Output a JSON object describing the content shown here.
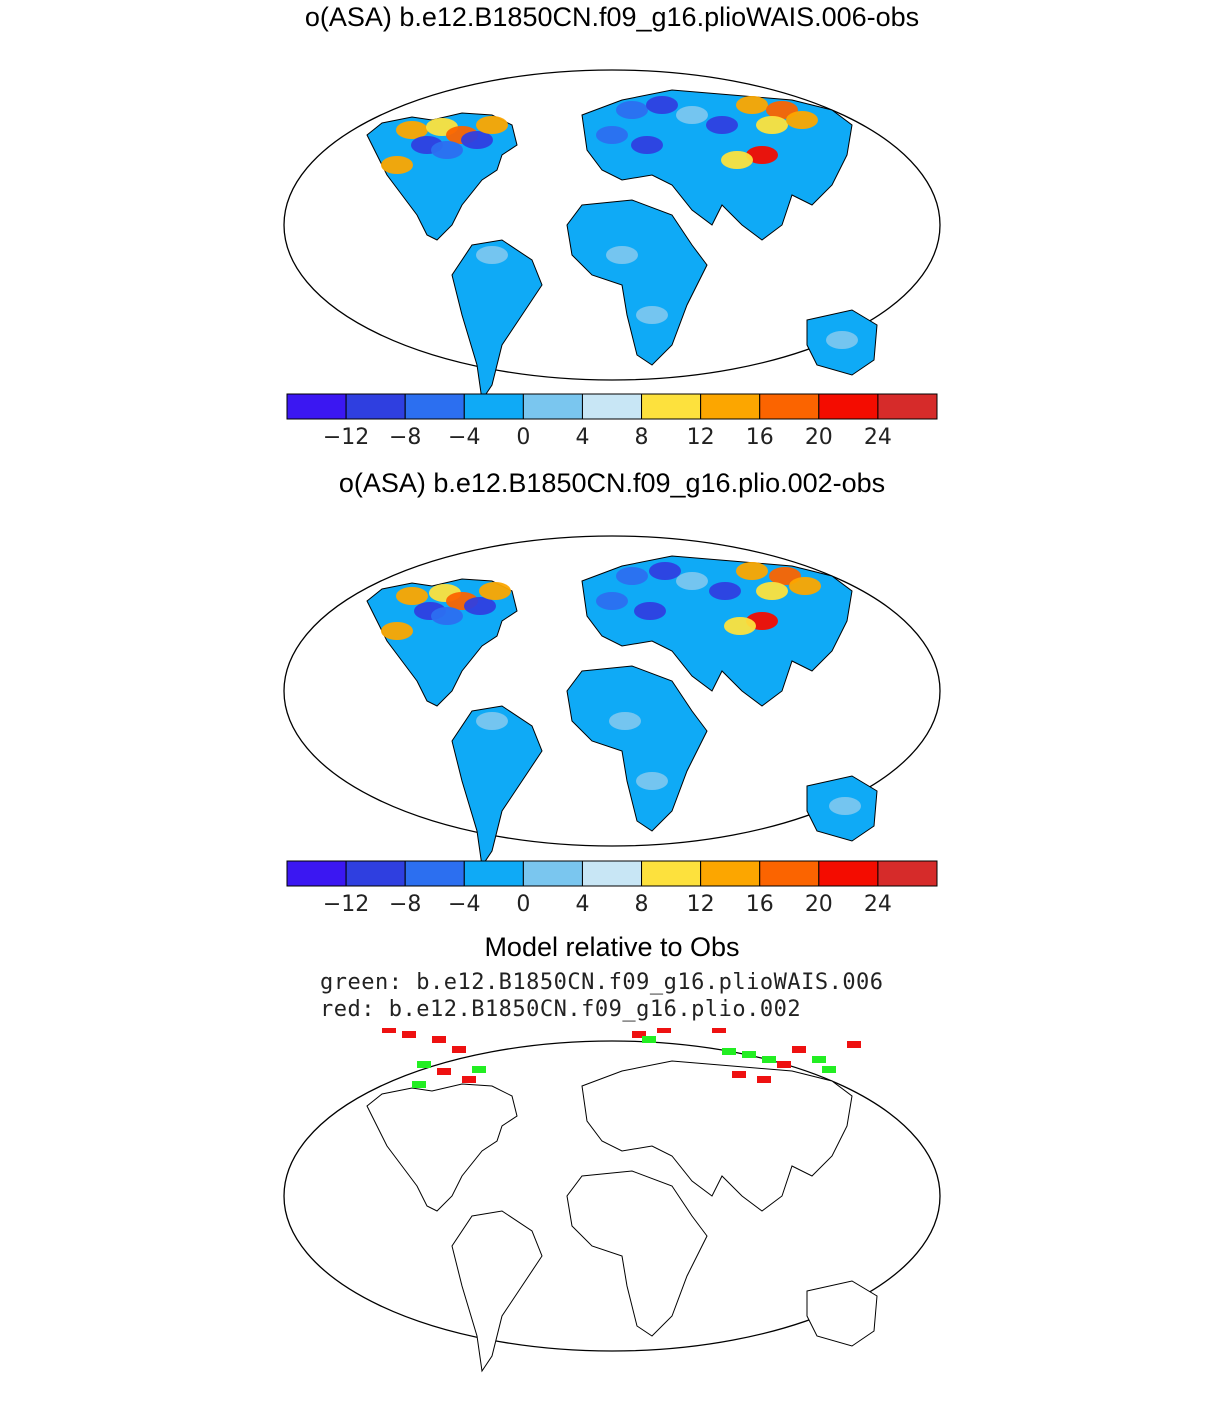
{
  "panel1": {
    "title": "o(ASA) b.e12.B1850CN.f09_g16.plioWAIS.006-obs"
  },
  "panel2": {
    "title": "o(ASA) b.e12.B1850CN.f09_g16.plio.002-obs"
  },
  "panel3": {
    "title": "Model relative to Obs",
    "legend_green": "green: b.e12.B1850CN.f09_g16.plioWAIS.006",
    "legend_red": "red: b.e12.B1850CN.f09_g16.plio.002"
  },
  "colorbar": {
    "colors": [
      "#3b17f2",
      "#2f3fe0",
      "#2c6ff0",
      "#0faaf6",
      "#7ac6ef",
      "#c8e6f5",
      "#fde13d",
      "#fca600",
      "#fb6400",
      "#f40c00",
      "#d62b2a"
    ],
    "labels": [
      "−12",
      "−8",
      "−4",
      "0",
      "4",
      "8",
      "12",
      "16",
      "20",
      "24"
    ]
  },
  "colors": {
    "green_marks": "#22ee22",
    "red_marks": "#ee1111"
  }
}
